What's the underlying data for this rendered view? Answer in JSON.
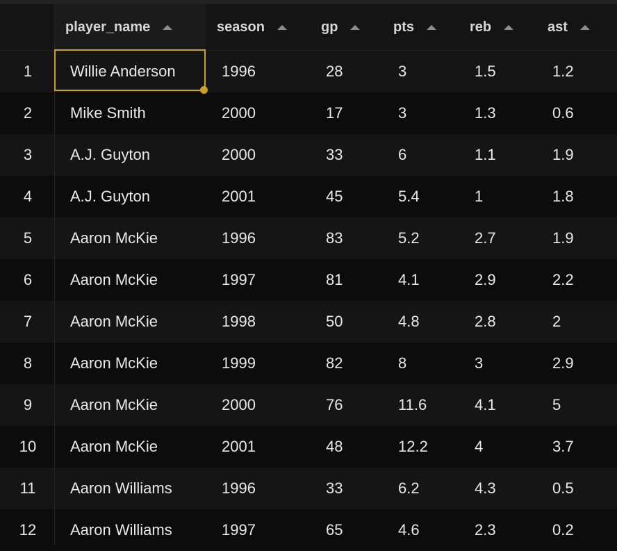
{
  "columns": [
    {
      "key": "player_name",
      "label": "player_name"
    },
    {
      "key": "season",
      "label": "season"
    },
    {
      "key": "gp",
      "label": "gp"
    },
    {
      "key": "pts",
      "label": "pts"
    },
    {
      "key": "reb",
      "label": "reb"
    },
    {
      "key": "ast",
      "label": "ast"
    }
  ],
  "rows": [
    {
      "n": "1",
      "player_name": "Willie Anderson",
      "season": "1996",
      "gp": "28",
      "pts": "3",
      "reb": "1.5",
      "ast": "1.2"
    },
    {
      "n": "2",
      "player_name": "Mike Smith",
      "season": "2000",
      "gp": "17",
      "pts": "3",
      "reb": "1.3",
      "ast": "0.6"
    },
    {
      "n": "3",
      "player_name": "A.J. Guyton",
      "season": "2000",
      "gp": "33",
      "pts": "6",
      "reb": "1.1",
      "ast": "1.9"
    },
    {
      "n": "4",
      "player_name": "A.J. Guyton",
      "season": "2001",
      "gp": "45",
      "pts": "5.4",
      "reb": "1",
      "ast": "1.8"
    },
    {
      "n": "5",
      "player_name": "Aaron McKie",
      "season": "1996",
      "gp": "83",
      "pts": "5.2",
      "reb": "2.7",
      "ast": "1.9"
    },
    {
      "n": "6",
      "player_name": "Aaron McKie",
      "season": "1997",
      "gp": "81",
      "pts": "4.1",
      "reb": "2.9",
      "ast": "2.2"
    },
    {
      "n": "7",
      "player_name": "Aaron McKie",
      "season": "1998",
      "gp": "50",
      "pts": "4.8",
      "reb": "2.8",
      "ast": "2"
    },
    {
      "n": "8",
      "player_name": "Aaron McKie",
      "season": "1999",
      "gp": "82",
      "pts": "8",
      "reb": "3",
      "ast": "2.9"
    },
    {
      "n": "9",
      "player_name": "Aaron McKie",
      "season": "2000",
      "gp": "76",
      "pts": "11.6",
      "reb": "4.1",
      "ast": "5"
    },
    {
      "n": "10",
      "player_name": "Aaron McKie",
      "season": "2001",
      "gp": "48",
      "pts": "12.2",
      "reb": "4",
      "ast": "3.7"
    },
    {
      "n": "11",
      "player_name": "Aaron Williams",
      "season": "1996",
      "gp": "33",
      "pts": "6.2",
      "reb": "4.3",
      "ast": "0.5"
    },
    {
      "n": "12",
      "player_name": "Aaron Williams",
      "season": "1997",
      "gp": "65",
      "pts": "4.6",
      "reb": "2.3",
      "ast": "0.2"
    }
  ],
  "colors": {
    "accent": "#c9a227",
    "background": "#0b0b0b"
  },
  "selected_cell": {
    "row": "1",
    "column": "player_name"
  }
}
